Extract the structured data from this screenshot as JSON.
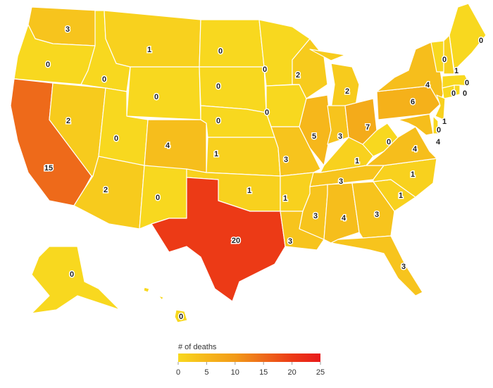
{
  "map": {
    "values": [
      3,
      0,
      15,
      2,
      0,
      1,
      0,
      0,
      2,
      4,
      0,
      0,
      0,
      0,
      1,
      1,
      20,
      0,
      0,
      3,
      1,
      3,
      2,
      5,
      2,
      3,
      7,
      1,
      3,
      3,
      4,
      3,
      3,
      1,
      1,
      4,
      0,
      6,
      4,
      0,
      0,
      1,
      0,
      0,
      0,
      1,
      0,
      4,
      0,
      0
    ],
    "legend": {
      "title": "# of deaths",
      "ticks": [
        0,
        5,
        10,
        15,
        20,
        25
      ],
      "colors": [
        "#f8d81f",
        "#f6b71b",
        "#f29a18",
        "#ee6a1a",
        "#ec3a16",
        "#e81a1b"
      ]
    }
  }
}
